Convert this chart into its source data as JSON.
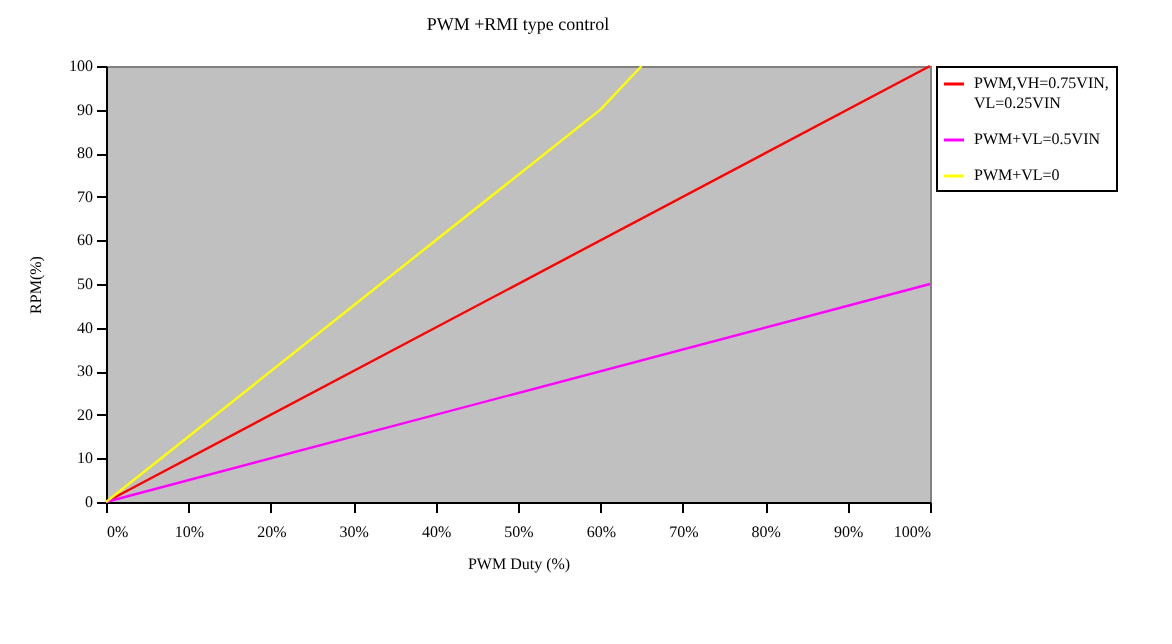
{
  "chart_data": {
    "type": "line",
    "title": "PWM +RMI type control",
    "xlabel": "PWM Duty (%)",
    "ylabel": "RPM(%)",
    "xlim": [
      0,
      100
    ],
    "xticks": [
      {
        "value": 0,
        "label": "0%"
      },
      {
        "value": 10,
        "label": "10%"
      },
      {
        "value": 20,
        "label": "20%"
      },
      {
        "value": 30,
        "label": "30%"
      },
      {
        "value": 40,
        "label": "40%"
      },
      {
        "value": 50,
        "label": "50%"
      },
      {
        "value": 60,
        "label": "60%"
      },
      {
        "value": 70,
        "label": "70%"
      },
      {
        "value": 80,
        "label": "80%"
      },
      {
        "value": 90,
        "label": "90%"
      },
      {
        "value": 100,
        "label": "100%"
      }
    ],
    "ylim": [
      0,
      100
    ],
    "yticks": [
      0,
      10,
      20,
      30,
      40,
      50,
      60,
      70,
      80,
      90,
      100
    ],
    "grid": false,
    "legend": "right",
    "marker": "none",
    "line_style": "solid",
    "series": [
      {
        "name": "PWM,VH=0.75VIN, VL=0.25VIN",
        "color": "#ff0000",
        "x": [
          0,
          100
        ],
        "values": [
          0,
          100
        ]
      },
      {
        "name": "PWM+VL=0.5VIN",
        "color": "#ff00ff",
        "x": [
          0,
          100
        ],
        "values": [
          0,
          50
        ]
      },
      {
        "name": "PWM+VL=0",
        "color": "#ffff00",
        "x": [
          0,
          60,
          65
        ],
        "values": [
          0,
          90,
          100
        ]
      }
    ]
  }
}
